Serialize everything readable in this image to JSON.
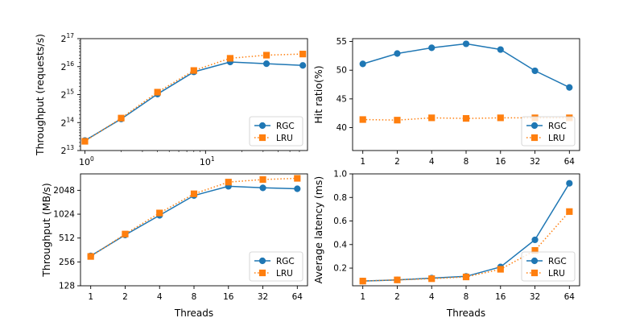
{
  "colors": {
    "rgc": "#1f77b4",
    "lru": "#ff7f0e"
  },
  "chart_data": [
    {
      "id": "throughput-req",
      "type": "line",
      "ylabel": "Throughput (requests/s)",
      "xlabel": "",
      "xscale": "log10",
      "yscale": "log2",
      "xlim": [
        0.92,
        70
      ],
      "ylim": [
        8192,
        131072
      ],
      "x": [
        1,
        2,
        4,
        8,
        16,
        32,
        64
      ],
      "xticks": [
        {
          "value": 1,
          "base": "10",
          "exp": "0"
        },
        {
          "value": 10,
          "base": "10",
          "exp": "1"
        }
      ],
      "yticks": [
        {
          "value": 8192,
          "base": "2",
          "exp": "13"
        },
        {
          "value": 16384,
          "base": "2",
          "exp": "14"
        },
        {
          "value": 32768,
          "base": "2",
          "exp": "15"
        },
        {
          "value": 65536,
          "base": "2",
          "exp": "16"
        },
        {
          "value": 131072,
          "base": "2",
          "exp": "17"
        }
      ],
      "legend": "lower-right",
      "series": [
        {
          "name": "RGC",
          "values": [
            10500,
            17900,
            33200,
            57500,
            73500,
            70500,
            67500
          ]
        },
        {
          "name": "LRU",
          "values": [
            10300,
            18300,
            34800,
            59500,
            80500,
            87000,
            89500
          ]
        }
      ]
    },
    {
      "id": "hit-ratio",
      "type": "line",
      "ylabel": "Hit ratio(%)",
      "xlabel": "",
      "xscale": "category",
      "yscale": "linear",
      "ylim": [
        36,
        55.5
      ],
      "x": [
        "1",
        "2",
        "4",
        "8",
        "16",
        "32",
        "64"
      ],
      "yticks": [
        "40",
        "45",
        "50",
        "55"
      ],
      "legend": "lower-right",
      "series": [
        {
          "name": "RGC",
          "values": [
            51.1,
            52.9,
            53.9,
            54.6,
            53.6,
            49.9,
            47.0
          ]
        },
        {
          "name": "LRU",
          "values": [
            41.4,
            41.3,
            41.7,
            41.6,
            41.7,
            41.7,
            41.7
          ]
        }
      ]
    },
    {
      "id": "throughput-mb",
      "type": "line",
      "ylabel": "Throughput (MB/s)",
      "xlabel": "Threads",
      "xscale": "category",
      "yscale": "log2",
      "ylim": [
        128,
        3300
      ],
      "x": [
        "1",
        "2",
        "4",
        "8",
        "16",
        "32",
        "64"
      ],
      "yticks": [
        "128",
        "256",
        "512",
        "1024",
        "2048"
      ],
      "legend": "lower-right",
      "series": [
        {
          "name": "RGC",
          "values": [
            305,
            560,
            990,
            1760,
            2300,
            2200,
            2140
          ]
        },
        {
          "name": "LRU",
          "values": [
            300,
            575,
            1060,
            1850,
            2600,
            2800,
            2900
          ]
        }
      ]
    },
    {
      "id": "latency",
      "type": "line",
      "ylabel": "Average latency (ms)",
      "xlabel": "Threads",
      "xscale": "category",
      "yscale": "linear",
      "ylim": [
        0.05,
        1.0
      ],
      "x": [
        "1",
        "2",
        "4",
        "8",
        "16",
        "32",
        "64"
      ],
      "yticks": [
        "0.2",
        "0.4",
        "0.6",
        "0.8",
        "1.0"
      ],
      "legend": "lower-right",
      "series": [
        {
          "name": "RGC",
          "values": [
            0.09,
            0.1,
            0.115,
            0.13,
            0.21,
            0.44,
            0.92
          ]
        },
        {
          "name": "LRU",
          "values": [
            0.09,
            0.1,
            0.11,
            0.125,
            0.19,
            0.35,
            0.68
          ]
        }
      ]
    }
  ]
}
